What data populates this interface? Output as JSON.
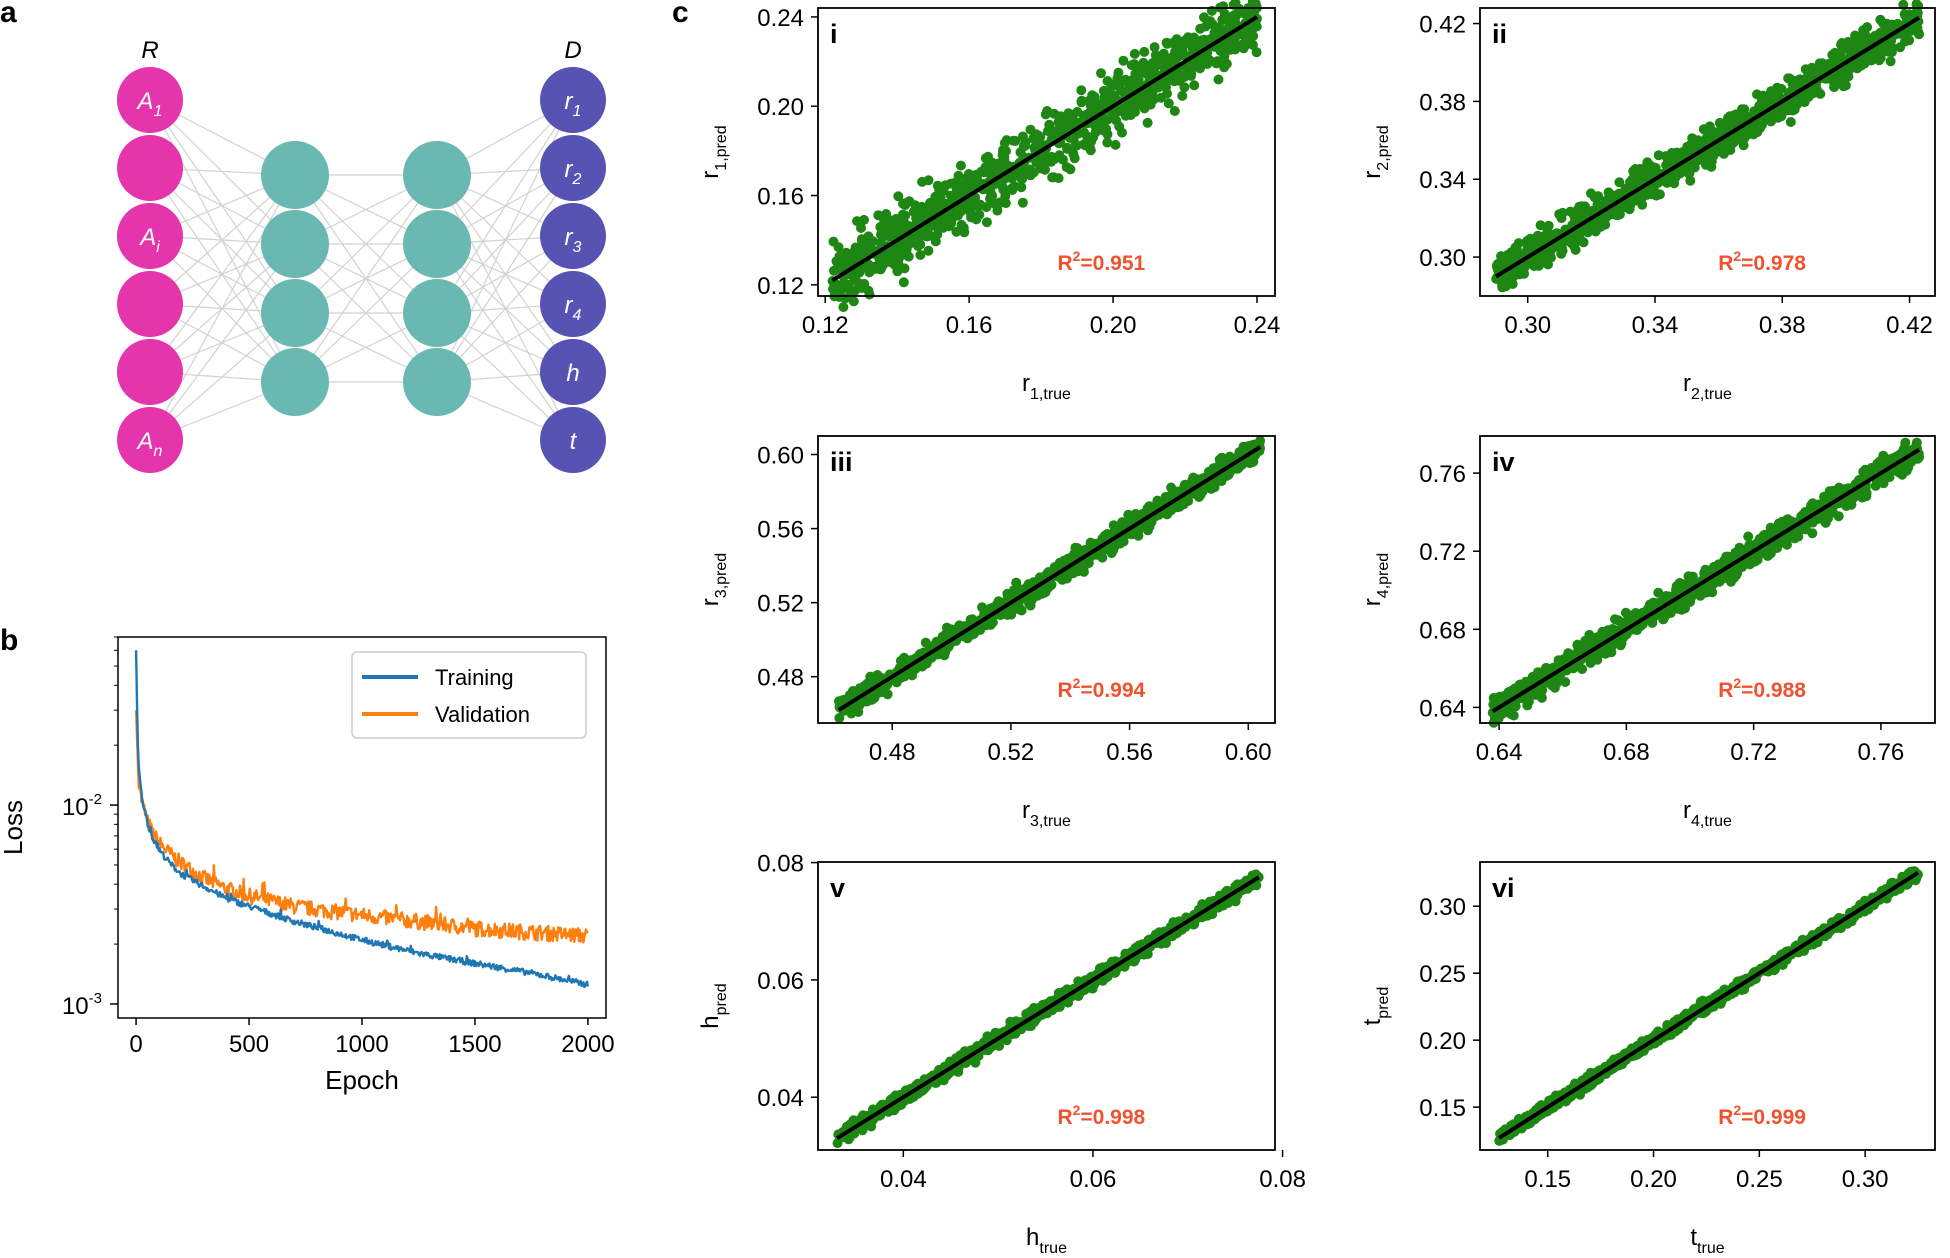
{
  "panels": {
    "a": "a",
    "b": "b",
    "c": "c"
  },
  "network": {
    "input_label": "R",
    "output_label": "D",
    "input_nodes": [
      {
        "base": "A",
        "sub": "1"
      },
      {
        "base": "",
        "sub": ""
      },
      {
        "base": "A",
        "sub": "i"
      },
      {
        "base": "",
        "sub": ""
      },
      {
        "base": "",
        "sub": ""
      },
      {
        "base": "A",
        "sub": "n"
      }
    ],
    "hidden_layers": [
      4,
      4
    ],
    "output_nodes": [
      {
        "base": "r",
        "sub": "1"
      },
      {
        "base": "r",
        "sub": "2"
      },
      {
        "base": "r",
        "sub": "3"
      },
      {
        "base": "r",
        "sub": "4"
      },
      {
        "base": "h",
        "sub": ""
      },
      {
        "base": "t",
        "sub": ""
      }
    ],
    "colors": {
      "input": "#e535ac",
      "hidden": "#6ab8b2",
      "output": "#5753b3",
      "edge": "#d2d2d2"
    }
  },
  "chart_data": [
    {
      "id": "loss",
      "type": "line",
      "xlabel": "Epoch",
      "ylabel": "Loss",
      "yscale": "log",
      "xlim": [
        -80,
        2080
      ],
      "ylim": [
        0.00085,
        0.07
      ],
      "xticks": [
        0,
        500,
        1000,
        1500,
        2000
      ],
      "yticks": [
        {
          "value": 0.01,
          "base": "10",
          "exp": "-2"
        },
        {
          "value": 0.001,
          "base": "10",
          "exp": "-3"
        }
      ],
      "legend": {
        "position": "top-right"
      },
      "series": [
        {
          "name": "Validation",
          "color": "#ff7f0e",
          "x": [
            0,
            10,
            25,
            50,
            75,
            100,
            150,
            200,
            300,
            400,
            500,
            700,
            1000,
            1250,
            1500,
            1750,
            2000
          ],
          "y": [
            0.03,
            0.014,
            0.0105,
            0.0083,
            0.0072,
            0.0065,
            0.0057,
            0.0051,
            0.0043,
            0.0038,
            0.0035,
            0.0031,
            0.0028,
            0.0026,
            0.0024,
            0.0023,
            0.0022
          ]
        },
        {
          "name": "Training",
          "color": "#1f77b4",
          "x": [
            0,
            5,
            10,
            25,
            50,
            75,
            100,
            150,
            200,
            300,
            400,
            500,
            700,
            1000,
            1250,
            1500,
            1750,
            2000
          ],
          "y": [
            0.06,
            0.028,
            0.016,
            0.011,
            0.0082,
            0.0068,
            0.006,
            0.0051,
            0.0045,
            0.0039,
            0.0034,
            0.0031,
            0.0026,
            0.0021,
            0.0018,
            0.0016,
            0.00143,
            0.00125
          ]
        }
      ]
    },
    {
      "id": "i",
      "type": "scatter",
      "label": "i",
      "xlabel": {
        "base": "r",
        "sub": "1,true"
      },
      "ylabel": {
        "base": "r",
        "sub": "1,pred"
      },
      "xlim": [
        0.118,
        0.245
      ],
      "ylim": [
        0.115,
        0.244
      ],
      "xticks": [
        "0.12",
        "0.16",
        "0.20",
        "0.24"
      ],
      "yticks": [
        "0.12",
        "0.16",
        "0.20",
        "0.24"
      ],
      "fit": [
        0.122,
        0.24
      ],
      "noise": 0.0075,
      "r2": {
        "prefix": "R",
        "exp": "2",
        "text": "=0.951"
      }
    },
    {
      "id": "ii",
      "type": "scatter",
      "label": "ii",
      "xlabel": {
        "base": "r",
        "sub": "2,true"
      },
      "ylabel": {
        "base": "r",
        "sub": "2,pred"
      },
      "xlim": [
        0.285,
        0.428
      ],
      "ylim": [
        0.28,
        0.428
      ],
      "xticks": [
        "0.30",
        "0.34",
        "0.38",
        "0.42"
      ],
      "yticks": [
        "0.30",
        "0.34",
        "0.38",
        "0.42"
      ],
      "fit": [
        0.29,
        0.423
      ],
      "noise": 0.005,
      "r2": {
        "prefix": "R",
        "exp": "2",
        "text": "=0.978"
      }
    },
    {
      "id": "iii",
      "type": "scatter",
      "label": "iii",
      "xlabel": {
        "base": "r",
        "sub": "3,true"
      },
      "ylabel": {
        "base": "r",
        "sub": "3,pred"
      },
      "xlim": [
        0.455,
        0.609
      ],
      "ylim": [
        0.455,
        0.61
      ],
      "xticks": [
        "0.48",
        "0.52",
        "0.56",
        "0.60"
      ],
      "yticks": [
        "0.48",
        "0.52",
        "0.56",
        "0.60"
      ],
      "fit": [
        0.462,
        0.604
      ],
      "noise": 0.003,
      "r2": {
        "prefix": "R",
        "exp": "2",
        "text": "=0.994"
      }
    },
    {
      "id": "iv",
      "type": "scatter",
      "label": "iv",
      "xlabel": {
        "base": "r",
        "sub": "4,true"
      },
      "ylabel": {
        "base": "r",
        "sub": "4,pred"
      },
      "xlim": [
        0.634,
        0.777
      ],
      "ylim": [
        0.632,
        0.779
      ],
      "xticks": [
        "0.64",
        "0.68",
        "0.72",
        "0.76"
      ],
      "yticks": [
        "0.64",
        "0.68",
        "0.72",
        "0.76"
      ],
      "fit": [
        0.638,
        0.772
      ],
      "noise": 0.0035,
      "r2": {
        "prefix": "R",
        "exp": "2",
        "text": "=0.988"
      }
    },
    {
      "id": "v",
      "type": "scatter",
      "label": "v",
      "xlabel": {
        "base": "h",
        "sub": "true"
      },
      "ylabel": {
        "base": "h",
        "sub": "pred"
      },
      "xlim": [
        0.031,
        0.0792
      ],
      "ylim": [
        0.031,
        0.0801
      ],
      "xticks": [
        "0.04",
        "0.06",
        "0.08"
      ],
      "yticks": [
        "0.04",
        "0.06",
        "0.08"
      ],
      "fit": [
        0.033,
        0.0775
      ],
      "noise": 0.0006,
      "r2": {
        "prefix": "R",
        "exp": "2",
        "text": "=0.998"
      }
    },
    {
      "id": "vi",
      "type": "scatter",
      "label": "vi",
      "xlabel": {
        "base": "t",
        "sub": "true"
      },
      "ylabel": {
        "base": "t",
        "sub": "pred"
      },
      "xlim": [
        0.118,
        0.333
      ],
      "ylim": [
        0.118,
        0.333
      ],
      "xticks": [
        "0.15",
        "0.20",
        "0.25",
        "0.30"
      ],
      "yticks": [
        "0.15",
        "0.20",
        "0.25",
        "0.30"
      ],
      "fit": [
        0.127,
        0.325
      ],
      "noise": 0.0022,
      "r2": {
        "prefix": "R",
        "exp": "2",
        "text": "=0.999"
      }
    }
  ],
  "colors": {
    "scatter": "#1e8714",
    "fit": "#000000",
    "r2": "#f0522e",
    "axis": "#000000"
  }
}
